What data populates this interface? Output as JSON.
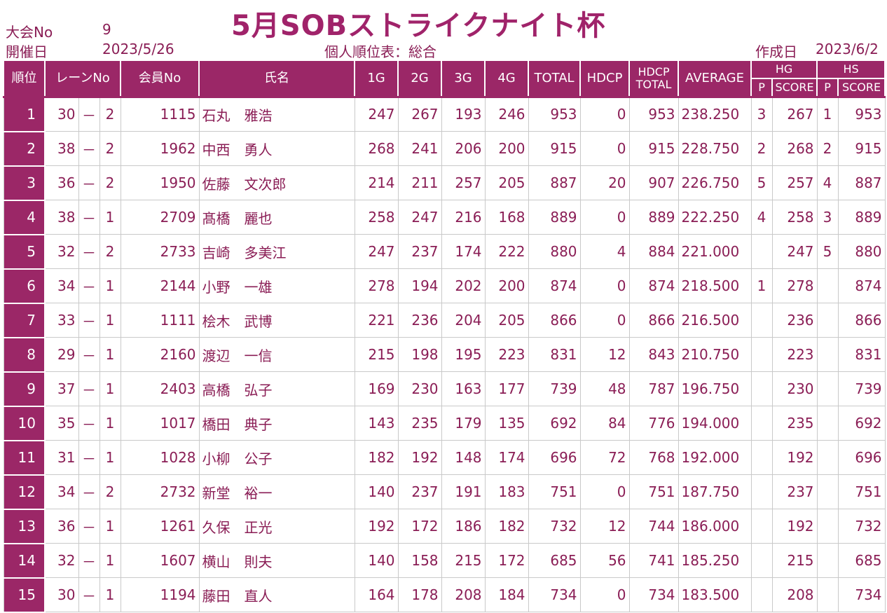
{
  "title": "5月SOBストライクナイト杯",
  "meta": {
    "tournament_label": "大会No",
    "tournament_no": "9",
    "date_label": "開催日",
    "date": "2023/5/26",
    "sheet_name": "個人順位表：総合",
    "created_label": "作成日",
    "created_date": "2023/6/2"
  },
  "headers": {
    "rank": "順位",
    "lane": "レーンNo",
    "member": "会員No",
    "name": "氏名",
    "g1": "1G",
    "g2": "2G",
    "g3": "3G",
    "g4": "4G",
    "total": "TOTAL",
    "hdcp": "HDCP",
    "hdcp_total_1": "HDCP",
    "hdcp_total_2": "TOTAL",
    "average": "AVERAGE",
    "hg": "HG",
    "hs": "HS",
    "p": "P",
    "score": "SCORE"
  },
  "rows": [
    {
      "rank": "1",
      "lane_a": "30",
      "dash": "－",
      "lane_b": "2",
      "member": "1115",
      "name": "石丸　雅浩",
      "g1": "247",
      "g2": "267",
      "g3": "193",
      "g4": "246",
      "total": "953",
      "hdcp": "0",
      "hdcp_total": "953",
      "avg": "238.250",
      "hg_p": "3",
      "hg_score": "267",
      "hs_p": "1",
      "hs_score": "953"
    },
    {
      "rank": "2",
      "lane_a": "38",
      "dash": "－",
      "lane_b": "2",
      "member": "1962",
      "name": "中西　勇人",
      "g1": "268",
      "g2": "241",
      "g3": "206",
      "g4": "200",
      "total": "915",
      "hdcp": "0",
      "hdcp_total": "915",
      "avg": "228.750",
      "hg_p": "2",
      "hg_score": "268",
      "hs_p": "2",
      "hs_score": "915"
    },
    {
      "rank": "3",
      "lane_a": "36",
      "dash": "－",
      "lane_b": "2",
      "member": "1950",
      "name": "佐藤　文次郎",
      "g1": "214",
      "g2": "211",
      "g3": "257",
      "g4": "205",
      "total": "887",
      "hdcp": "20",
      "hdcp_total": "907",
      "avg": "226.750",
      "hg_p": "5",
      "hg_score": "257",
      "hs_p": "4",
      "hs_score": "887"
    },
    {
      "rank": "4",
      "lane_a": "38",
      "dash": "－",
      "lane_b": "1",
      "member": "2709",
      "name": "髙橋　麗也",
      "g1": "258",
      "g2": "247",
      "g3": "216",
      "g4": "168",
      "total": "889",
      "hdcp": "0",
      "hdcp_total": "889",
      "avg": "222.250",
      "hg_p": "4",
      "hg_score": "258",
      "hs_p": "3",
      "hs_score": "889"
    },
    {
      "rank": "5",
      "lane_a": "32",
      "dash": "－",
      "lane_b": "2",
      "member": "2733",
      "name": "吉崎　多美江",
      "g1": "247",
      "g2": "237",
      "g3": "174",
      "g4": "222",
      "total": "880",
      "hdcp": "4",
      "hdcp_total": "884",
      "avg": "221.000",
      "hg_p": "",
      "hg_score": "247",
      "hs_p": "5",
      "hs_score": "880"
    },
    {
      "rank": "6",
      "lane_a": "34",
      "dash": "－",
      "lane_b": "1",
      "member": "2144",
      "name": "小野　一雄",
      "g1": "278",
      "g2": "194",
      "g3": "202",
      "g4": "200",
      "total": "874",
      "hdcp": "0",
      "hdcp_total": "874",
      "avg": "218.500",
      "hg_p": "1",
      "hg_score": "278",
      "hs_p": "",
      "hs_score": "874"
    },
    {
      "rank": "7",
      "lane_a": "33",
      "dash": "－",
      "lane_b": "1",
      "member": "1111",
      "name": "桧木　武博",
      "g1": "221",
      "g2": "236",
      "g3": "204",
      "g4": "205",
      "total": "866",
      "hdcp": "0",
      "hdcp_total": "866",
      "avg": "216.500",
      "hg_p": "",
      "hg_score": "236",
      "hs_p": "",
      "hs_score": "866"
    },
    {
      "rank": "8",
      "lane_a": "29",
      "dash": "－",
      "lane_b": "1",
      "member": "2160",
      "name": "渡辺　一信",
      "g1": "215",
      "g2": "198",
      "g3": "195",
      "g4": "223",
      "total": "831",
      "hdcp": "12",
      "hdcp_total": "843",
      "avg": "210.750",
      "hg_p": "",
      "hg_score": "223",
      "hs_p": "",
      "hs_score": "831"
    },
    {
      "rank": "9",
      "lane_a": "37",
      "dash": "－",
      "lane_b": "1",
      "member": "2403",
      "name": "高橋　弘子",
      "g1": "169",
      "g2": "230",
      "g3": "163",
      "g4": "177",
      "total": "739",
      "hdcp": "48",
      "hdcp_total": "787",
      "avg": "196.750",
      "hg_p": "",
      "hg_score": "230",
      "hs_p": "",
      "hs_score": "739"
    },
    {
      "rank": "10",
      "lane_a": "35",
      "dash": "－",
      "lane_b": "1",
      "member": "1017",
      "name": "橋田　典子",
      "g1": "143",
      "g2": "235",
      "g3": "179",
      "g4": "135",
      "total": "692",
      "hdcp": "84",
      "hdcp_total": "776",
      "avg": "194.000",
      "hg_p": "",
      "hg_score": "235",
      "hs_p": "",
      "hs_score": "692"
    },
    {
      "rank": "11",
      "lane_a": "31",
      "dash": "－",
      "lane_b": "1",
      "member": "1028",
      "name": "小柳　公子",
      "g1": "182",
      "g2": "192",
      "g3": "148",
      "g4": "174",
      "total": "696",
      "hdcp": "72",
      "hdcp_total": "768",
      "avg": "192.000",
      "hg_p": "",
      "hg_score": "192",
      "hs_p": "",
      "hs_score": "696"
    },
    {
      "rank": "12",
      "lane_a": "34",
      "dash": "－",
      "lane_b": "2",
      "member": "2732",
      "name": "新堂　裕一",
      "g1": "140",
      "g2": "237",
      "g3": "191",
      "g4": "183",
      "total": "751",
      "hdcp": "0",
      "hdcp_total": "751",
      "avg": "187.750",
      "hg_p": "",
      "hg_score": "237",
      "hs_p": "",
      "hs_score": "751"
    },
    {
      "rank": "13",
      "lane_a": "36",
      "dash": "－",
      "lane_b": "1",
      "member": "1261",
      "name": "久保　正光",
      "g1": "192",
      "g2": "172",
      "g3": "186",
      "g4": "182",
      "total": "732",
      "hdcp": "12",
      "hdcp_total": "744",
      "avg": "186.000",
      "hg_p": "",
      "hg_score": "192",
      "hs_p": "",
      "hs_score": "732"
    },
    {
      "rank": "14",
      "lane_a": "32",
      "dash": "－",
      "lane_b": "1",
      "member": "1607",
      "name": "横山　則夫",
      "g1": "140",
      "g2": "158",
      "g3": "215",
      "g4": "172",
      "total": "685",
      "hdcp": "56",
      "hdcp_total": "741",
      "avg": "185.250",
      "hg_p": "",
      "hg_score": "215",
      "hs_p": "",
      "hs_score": "685"
    },
    {
      "rank": "15",
      "lane_a": "30",
      "dash": "－",
      "lane_b": "1",
      "member": "1194",
      "name": "藤田　直人",
      "g1": "164",
      "g2": "178",
      "g3": "208",
      "g4": "184",
      "total": "734",
      "hdcp": "0",
      "hdcp_total": "734",
      "avg": "183.500",
      "hg_p": "",
      "hg_score": "208",
      "hs_p": "",
      "hs_score": "734"
    }
  ],
  "colors": {
    "header_bg": "#9b2767",
    "text": "#8a1d55",
    "title": "#a0236a"
  }
}
